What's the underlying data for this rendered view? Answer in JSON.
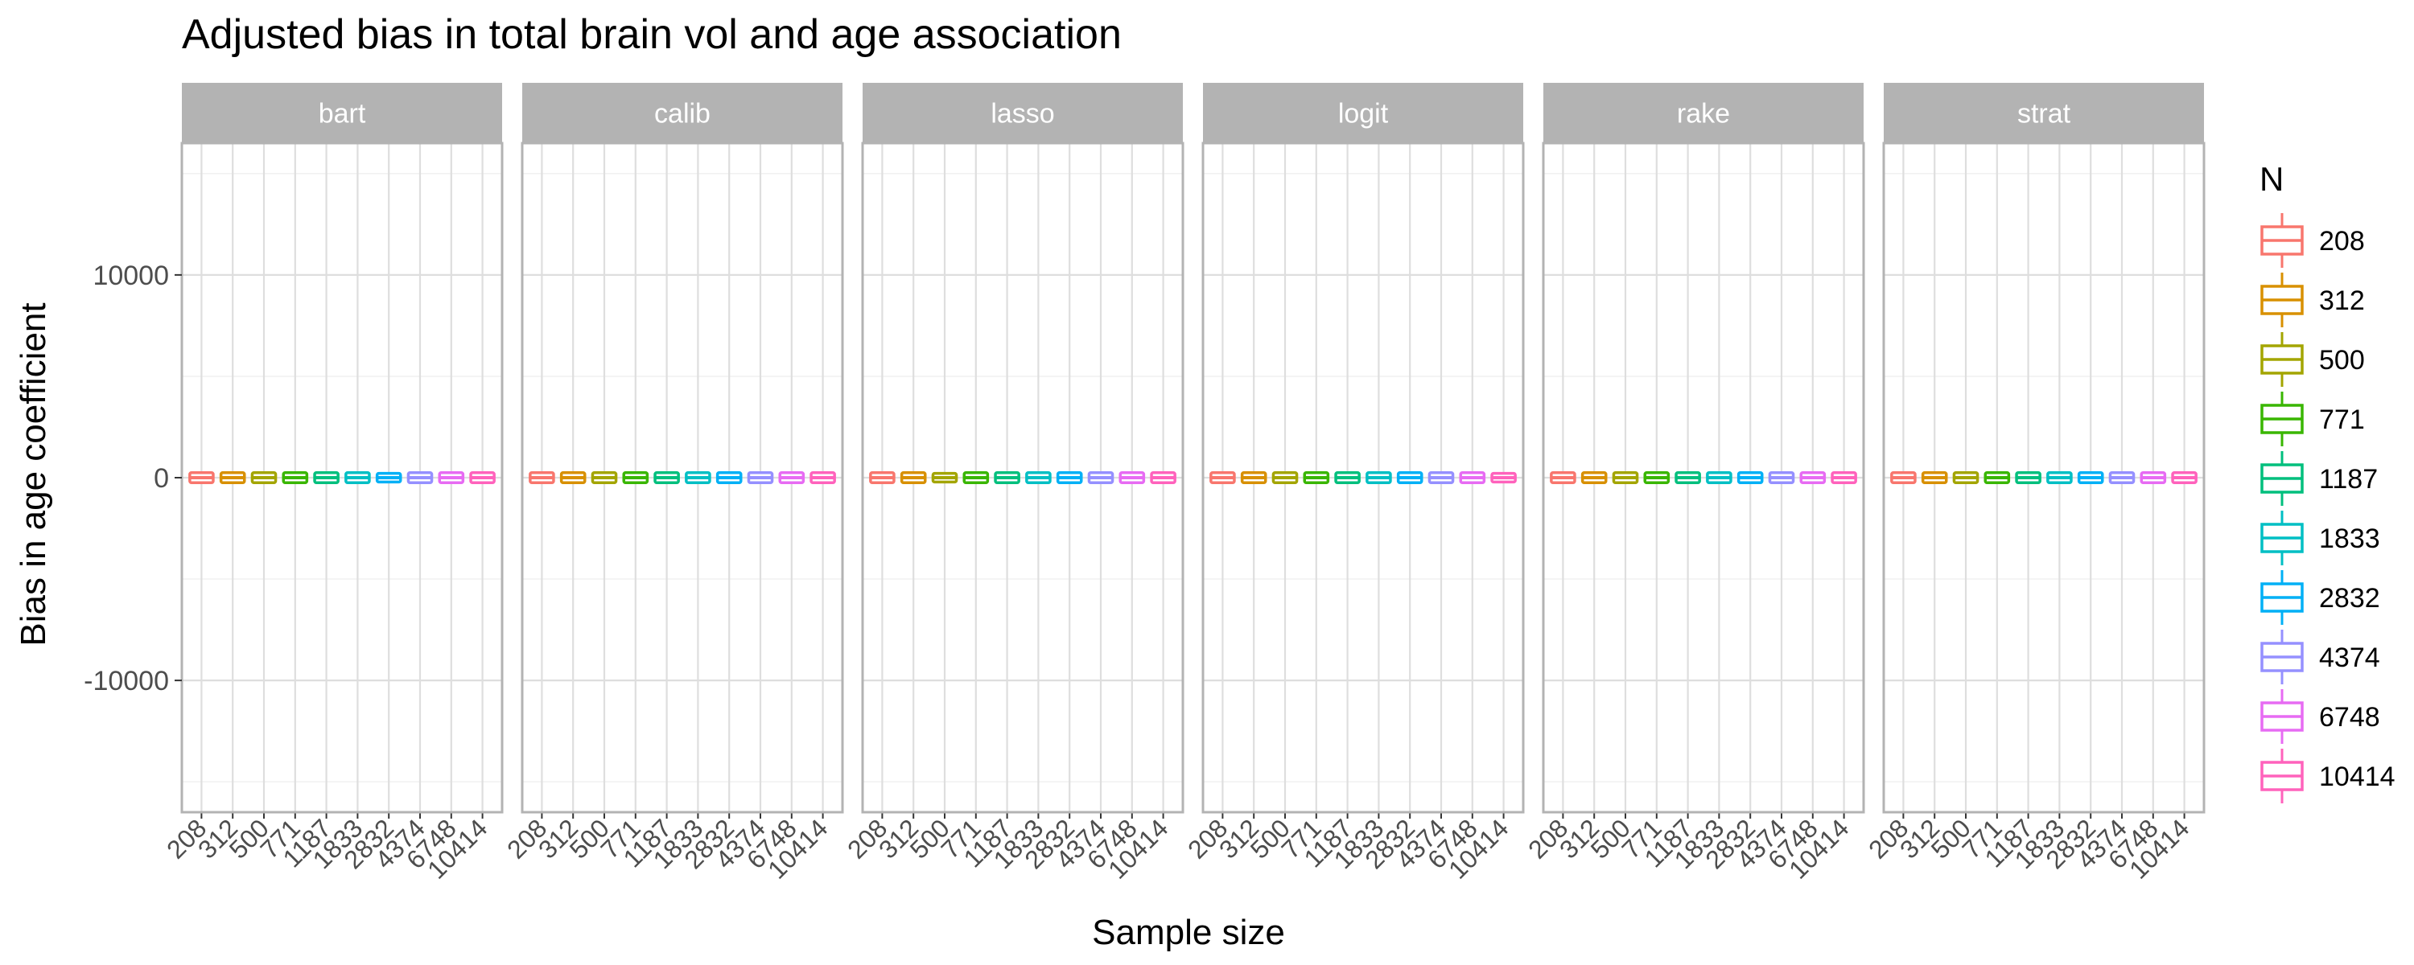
{
  "chart_data": {
    "type": "boxplot",
    "title": "Adjusted bias in total brain vol and age association",
    "xlabel": "Sample size",
    "ylabel": "Bias in age coefficient",
    "ylim": [
      -16500,
      16500
    ],
    "y_ticks": [
      -10000,
      0,
      10000
    ],
    "grid": true,
    "legend": {
      "title": "N",
      "position": "right"
    },
    "categories": [
      "208",
      "312",
      "500",
      "771",
      "1187",
      "1833",
      "2832",
      "4374",
      "6748",
      "10414"
    ],
    "colors": [
      "#F8766D",
      "#D89000",
      "#A3A500",
      "#39B600",
      "#00BF7D",
      "#00BFC4",
      "#00B0F6",
      "#9590FF",
      "#E76BF3",
      "#FF62BC"
    ],
    "facets": [
      {
        "label": "bart",
        "boxes": [
          {
            "q1": -50,
            "median": 0,
            "q3": 50,
            "whisker_low": -140,
            "whisker_high": 140
          },
          {
            "q1": -50,
            "median": 0,
            "q3": 50,
            "whisker_low": -140,
            "whisker_high": 140
          },
          {
            "q1": -50,
            "median": 0,
            "q3": 50,
            "whisker_low": -140,
            "whisker_high": 140
          },
          {
            "q1": -50,
            "median": 0,
            "q3": 50,
            "whisker_low": -140,
            "whisker_high": 140
          },
          {
            "q1": -50,
            "median": 0,
            "q3": 50,
            "whisker_low": -140,
            "whisker_high": 140
          },
          {
            "q1": -50,
            "median": 0,
            "q3": 50,
            "whisker_low": -140,
            "whisker_high": 140
          },
          {
            "q1": -15,
            "median": 0,
            "q3": 15,
            "whisker_low": -40,
            "whisker_high": 40
          },
          {
            "q1": -50,
            "median": 0,
            "q3": 50,
            "whisker_low": -140,
            "whisker_high": 140
          },
          {
            "q1": -50,
            "median": 0,
            "q3": 50,
            "whisker_low": -140,
            "whisker_high": 140
          },
          {
            "q1": -50,
            "median": 0,
            "q3": 50,
            "whisker_low": -140,
            "whisker_high": 140
          }
        ]
      },
      {
        "label": "calib",
        "boxes": [
          {
            "q1": -50,
            "median": 0,
            "q3": 50,
            "whisker_low": -140,
            "whisker_high": 140
          },
          {
            "q1": -50,
            "median": 0,
            "q3": 50,
            "whisker_low": -140,
            "whisker_high": 140
          },
          {
            "q1": -50,
            "median": 0,
            "q3": 50,
            "whisker_low": -140,
            "whisker_high": 140
          },
          {
            "q1": -50,
            "median": 0,
            "q3": 50,
            "whisker_low": -140,
            "whisker_high": 140
          },
          {
            "q1": -50,
            "median": 0,
            "q3": 50,
            "whisker_low": -140,
            "whisker_high": 140
          },
          {
            "q1": -50,
            "median": 0,
            "q3": 50,
            "whisker_low": -140,
            "whisker_high": 140
          },
          {
            "q1": -50,
            "median": 0,
            "q3": 50,
            "whisker_low": -140,
            "whisker_high": 140
          },
          {
            "q1": -50,
            "median": 0,
            "q3": 50,
            "whisker_low": -140,
            "whisker_high": 140
          },
          {
            "q1": -50,
            "median": 0,
            "q3": 50,
            "whisker_low": -140,
            "whisker_high": 140
          },
          {
            "q1": -50,
            "median": 0,
            "q3": 50,
            "whisker_low": -140,
            "whisker_high": 140
          }
        ]
      },
      {
        "label": "lasso",
        "boxes": [
          {
            "q1": -50,
            "median": 0,
            "q3": 50,
            "whisker_low": -140,
            "whisker_high": 140
          },
          {
            "q1": -50,
            "median": 0,
            "q3": 50,
            "whisker_low": -140,
            "whisker_high": 140
          },
          {
            "q1": -15,
            "median": 0,
            "q3": 15,
            "whisker_low": -40,
            "whisker_high": 40
          },
          {
            "q1": -50,
            "median": 0,
            "q3": 50,
            "whisker_low": -140,
            "whisker_high": 140
          },
          {
            "q1": -50,
            "median": 0,
            "q3": 50,
            "whisker_low": -140,
            "whisker_high": 140
          },
          {
            "q1": -50,
            "median": 0,
            "q3": 50,
            "whisker_low": -140,
            "whisker_high": 140
          },
          {
            "q1": -50,
            "median": 0,
            "q3": 50,
            "whisker_low": -140,
            "whisker_high": 140
          },
          {
            "q1": -50,
            "median": 0,
            "q3": 50,
            "whisker_low": -140,
            "whisker_high": 140
          },
          {
            "q1": -50,
            "median": 0,
            "q3": 50,
            "whisker_low": -140,
            "whisker_high": 140
          },
          {
            "q1": -50,
            "median": 0,
            "q3": 50,
            "whisker_low": -140,
            "whisker_high": 140
          }
        ]
      },
      {
        "label": "logit",
        "boxes": [
          {
            "q1": -50,
            "median": 0,
            "q3": 50,
            "whisker_low": -140,
            "whisker_high": 140
          },
          {
            "q1": -50,
            "median": 0,
            "q3": 50,
            "whisker_low": -140,
            "whisker_high": 140
          },
          {
            "q1": -50,
            "median": 0,
            "q3": 50,
            "whisker_low": -140,
            "whisker_high": 140
          },
          {
            "q1": -50,
            "median": 0,
            "q3": 50,
            "whisker_low": -140,
            "whisker_high": 140
          },
          {
            "q1": -50,
            "median": 0,
            "q3": 50,
            "whisker_low": -140,
            "whisker_high": 140
          },
          {
            "q1": -50,
            "median": 0,
            "q3": 50,
            "whisker_low": -140,
            "whisker_high": 140
          },
          {
            "q1": -50,
            "median": 0,
            "q3": 50,
            "whisker_low": -140,
            "whisker_high": 140
          },
          {
            "q1": -50,
            "median": 0,
            "q3": 50,
            "whisker_low": -140,
            "whisker_high": 140
          },
          {
            "q1": -50,
            "median": 0,
            "q3": 50,
            "whisker_low": -140,
            "whisker_high": 140
          },
          {
            "q1": -15,
            "median": 0,
            "q3": 15,
            "whisker_low": -40,
            "whisker_high": 40
          }
        ]
      },
      {
        "label": "rake",
        "boxes": [
          {
            "q1": -50,
            "median": 0,
            "q3": 50,
            "whisker_low": -140,
            "whisker_high": 140
          },
          {
            "q1": -50,
            "median": 0,
            "q3": 50,
            "whisker_low": -140,
            "whisker_high": 140
          },
          {
            "q1": -50,
            "median": 0,
            "q3": 50,
            "whisker_low": -140,
            "whisker_high": 140
          },
          {
            "q1": -50,
            "median": 0,
            "q3": 50,
            "whisker_low": -140,
            "whisker_high": 140
          },
          {
            "q1": -50,
            "median": 0,
            "q3": 50,
            "whisker_low": -140,
            "whisker_high": 140
          },
          {
            "q1": -50,
            "median": 0,
            "q3": 50,
            "whisker_low": -140,
            "whisker_high": 140
          },
          {
            "q1": -50,
            "median": 0,
            "q3": 50,
            "whisker_low": -140,
            "whisker_high": 140
          },
          {
            "q1": -50,
            "median": 0,
            "q3": 50,
            "whisker_low": -140,
            "whisker_high": 140
          },
          {
            "q1": -50,
            "median": 0,
            "q3": 50,
            "whisker_low": -140,
            "whisker_high": 140
          },
          {
            "q1": -50,
            "median": 0,
            "q3": 50,
            "whisker_low": -140,
            "whisker_high": 140
          }
        ]
      },
      {
        "label": "strat",
        "boxes": [
          {
            "q1": -50,
            "median": 0,
            "q3": 50,
            "whisker_low": -140,
            "whisker_high": 140
          },
          {
            "q1": -50,
            "median": 0,
            "q3": 50,
            "whisker_low": -140,
            "whisker_high": 140
          },
          {
            "q1": -50,
            "median": 0,
            "q3": 50,
            "whisker_low": -140,
            "whisker_high": 140
          },
          {
            "q1": -50,
            "median": 0,
            "q3": 50,
            "whisker_low": -140,
            "whisker_high": 140
          },
          {
            "q1": -50,
            "median": 0,
            "q3": 50,
            "whisker_low": -140,
            "whisker_high": 140
          },
          {
            "q1": -50,
            "median": 0,
            "q3": 50,
            "whisker_low": -140,
            "whisker_high": 140
          },
          {
            "q1": -50,
            "median": 0,
            "q3": 50,
            "whisker_low": -140,
            "whisker_high": 140
          },
          {
            "q1": -50,
            "median": 0,
            "q3": 50,
            "whisker_low": -140,
            "whisker_high": 140
          },
          {
            "q1": -50,
            "median": 0,
            "q3": 50,
            "whisker_low": -140,
            "whisker_high": 140
          },
          {
            "q1": -50,
            "median": 0,
            "q3": 50,
            "whisker_low": -140,
            "whisker_high": 140
          }
        ]
      }
    ]
  }
}
